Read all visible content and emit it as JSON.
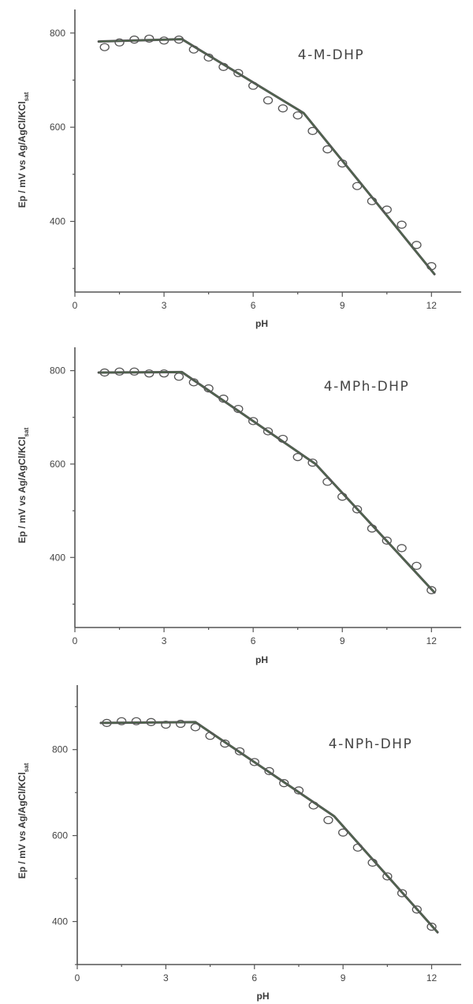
{
  "chart_data": [
    {
      "type": "scatter",
      "label": "4-M-DHP",
      "xlabel": "pH",
      "ylabel_main": "Ep / mV vs Ag/AgCl/KCl",
      "ylabel_sub": "sat",
      "xlim": [
        0,
        13
      ],
      "ylim": [
        250,
        850
      ],
      "xticks": [
        0,
        3,
        6,
        9,
        12
      ],
      "yticks": [
        400,
        600,
        800
      ],
      "points": {
        "x": [
          1.0,
          1.5,
          2.0,
          2.5,
          3.0,
          3.5,
          4.0,
          4.5,
          5.0,
          5.5,
          6.0,
          6.5,
          7.0,
          7.5,
          8.0,
          8.5,
          9.0,
          9.5,
          10.0,
          10.5,
          11.0,
          11.5,
          12.0
        ],
        "y": [
          770,
          780,
          786,
          788,
          784,
          786,
          765,
          748,
          728,
          715,
          688,
          657,
          640,
          625,
          592,
          553,
          523,
          475,
          443,
          425,
          393,
          350,
          305
        ]
      },
      "fit": {
        "x": [
          0.8,
          3.6,
          7.7,
          12.1
        ],
        "y": [
          782,
          787,
          630,
          288
        ]
      }
    },
    {
      "type": "scatter",
      "label": "4-MPh-DHP",
      "xlabel": "pH",
      "ylabel_main": "Ep / mV vs Ag/AgCl/KCl",
      "ylabel_sub": "sat",
      "xlim": [
        0,
        13
      ],
      "ylim": [
        250,
        850
      ],
      "xticks": [
        0,
        3,
        6,
        9,
        12
      ],
      "yticks": [
        400,
        600,
        800
      ],
      "points": {
        "x": [
          1.0,
          1.5,
          2.0,
          2.5,
          3.0,
          3.5,
          4.0,
          4.5,
          5.0,
          5.5,
          6.0,
          6.5,
          7.0,
          7.5,
          8.0,
          8.5,
          9.0,
          9.5,
          10.0,
          10.5,
          11.0,
          11.5,
          12.0
        ],
        "y": [
          796,
          798,
          798,
          794,
          794,
          787,
          775,
          762,
          740,
          718,
          692,
          670,
          654,
          615,
          603,
          562,
          530,
          503,
          462,
          436,
          420,
          382,
          330
        ]
      },
      "fit": {
        "x": [
          0.8,
          3.6,
          8.1,
          12.1
        ],
        "y": [
          796,
          797,
          600,
          325
        ]
      }
    },
    {
      "type": "scatter",
      "label": "4-NPh-DHP",
      "xlabel": "pH",
      "ylabel_main": "Ep / mV vs Ag/AgCl/KCl",
      "ylabel_sub": "sat",
      "xlim": [
        0,
        13
      ],
      "ylim": [
        300,
        950
      ],
      "xticks": [
        0,
        3,
        6,
        9,
        12
      ],
      "yticks": [
        400,
        600,
        800
      ],
      "points": {
        "x": [
          1.0,
          1.5,
          2.0,
          2.5,
          3.0,
          3.5,
          4.0,
          4.5,
          5.0,
          5.5,
          6.0,
          6.5,
          7.0,
          7.5,
          8.0,
          8.5,
          9.0,
          9.5,
          10.0,
          10.5,
          11.0,
          11.5,
          12.0
        ],
        "y": [
          862,
          866,
          866,
          864,
          858,
          860,
          852,
          832,
          814,
          796,
          771,
          750,
          722,
          705,
          670,
          636,
          607,
          572,
          537,
          505,
          466,
          428,
          388
        ]
      },
      "fit": {
        "x": [
          0.8,
          4.0,
          8.7,
          12.2
        ],
        "y": [
          862,
          864,
          645,
          375
        ]
      }
    }
  ]
}
